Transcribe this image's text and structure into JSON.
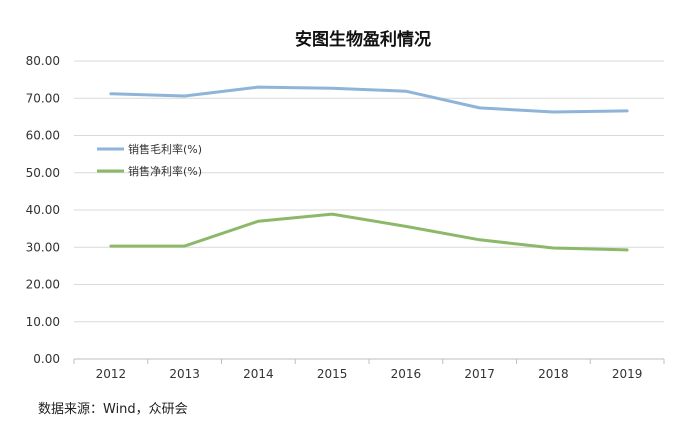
{
  "chart_data": {
    "type": "line",
    "title": "安图生物盈利情况",
    "categories": [
      "2012",
      "2013",
      "2014",
      "2015",
      "2016",
      "2017",
      "2018",
      "2019"
    ],
    "series": [
      {
        "name": "销售毛利率(%)",
        "color": "#8fb4d9",
        "values": [
          71.2,
          70.6,
          73.0,
          72.7,
          71.9,
          67.4,
          66.3,
          66.6
        ]
      },
      {
        "name": "销售净利率(%)",
        "color": "#8cb86a",
        "values": [
          30.3,
          30.3,
          37.0,
          38.9,
          35.6,
          32.0,
          29.8,
          29.3
        ]
      }
    ],
    "yticks": [
      "0.00",
      "10.00",
      "20.00",
      "30.00",
      "40.00",
      "50.00",
      "60.00",
      "70.00",
      "80.00"
    ],
    "ylim": [
      0,
      80
    ],
    "grid": true,
    "legend_position": "left"
  },
  "source_text": "数据来源：Wind，众研会"
}
